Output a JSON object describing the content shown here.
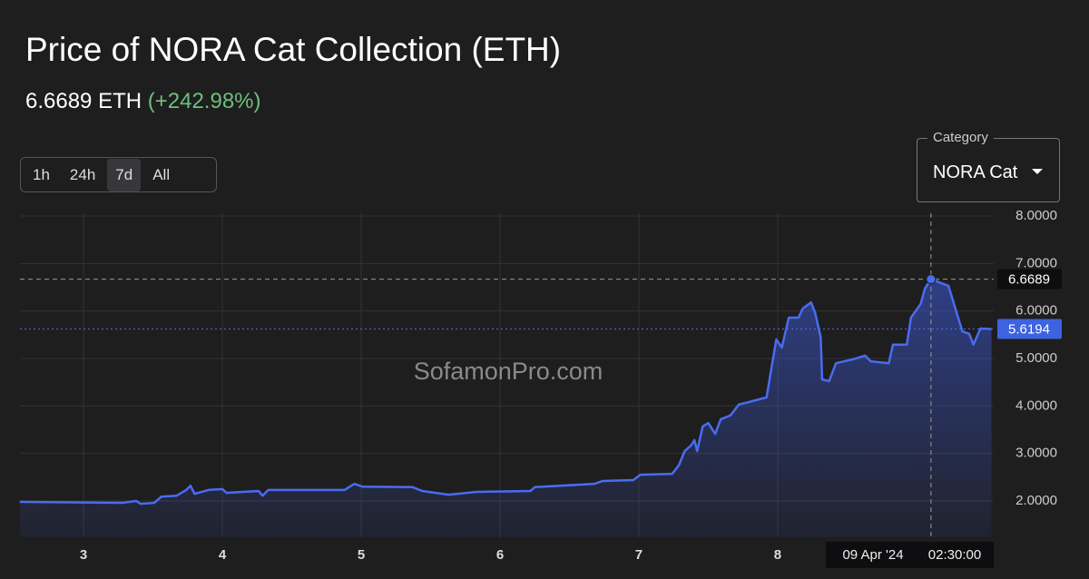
{
  "header": {
    "title": "Price of NORA Cat Collection (ETH)",
    "price": "6.6689 ETH",
    "change": "(+242.98%)"
  },
  "controls": {
    "ranges": [
      "1h",
      "24h",
      "7d",
      "All"
    ],
    "active_range": 2,
    "category_label": "Category",
    "category_value": "NORA Cat"
  },
  "watermark": "SofamonPro.com",
  "chart_data": {
    "type": "area",
    "color": "#4a6cf0",
    "x": [
      2.54,
      3.28,
      3.38,
      3.41,
      3.51,
      3.56,
      3.67,
      3.74,
      3.77,
      3.8,
      3.9,
      4.0,
      4.03,
      4.26,
      4.29,
      4.33,
      4.88,
      4.95,
      5.01,
      5.37,
      5.44,
      5.63,
      5.83,
      6.22,
      6.25,
      6.68,
      6.74,
      6.96,
      7.01,
      7.24,
      7.29,
      7.33,
      7.38,
      7.4,
      7.42,
      7.46,
      7.5,
      7.55,
      7.59,
      7.66,
      7.72,
      7.79,
      7.92,
      7.95,
      7.99,
      8.03,
      8.08,
      8.15,
      8.18,
      8.24,
      8.27,
      8.31,
      8.32,
      8.37,
      8.42,
      8.54,
      8.63,
      8.67,
      8.8,
      8.83,
      8.93,
      8.96,
      9.03,
      9.06,
      9.104,
      9.23,
      9.33,
      9.38,
      9.41,
      9.46,
      9.54
    ],
    "values": [
      1.98,
      1.96,
      2.0,
      1.94,
      1.96,
      2.09,
      2.11,
      2.23,
      2.32,
      2.15,
      2.23,
      2.25,
      2.17,
      2.21,
      2.11,
      2.23,
      2.23,
      2.36,
      2.3,
      2.29,
      2.21,
      2.13,
      2.19,
      2.21,
      2.29,
      2.36,
      2.42,
      2.44,
      2.55,
      2.57,
      2.76,
      3.05,
      3.18,
      3.28,
      3.05,
      3.57,
      3.64,
      3.41,
      3.72,
      3.8,
      4.03,
      4.08,
      4.18,
      4.71,
      5.4,
      5.23,
      5.86,
      5.86,
      6.05,
      6.18,
      5.96,
      5.44,
      4.56,
      4.52,
      4.9,
      4.98,
      5.06,
      4.94,
      4.9,
      5.29,
      5.29,
      5.86,
      6.15,
      6.47,
      6.6689,
      6.53,
      5.57,
      5.52,
      5.29,
      5.63,
      5.6194
    ],
    "xlim": [
      2.542,
      9.556
    ],
    "xticks": [
      3,
      4,
      5,
      6,
      7,
      8
    ],
    "ylim": [
      1.235,
      8.057
    ],
    "yticks": [
      {
        "value": 2,
        "label": "2.0000"
      },
      {
        "value": 3,
        "label": "3.0000"
      },
      {
        "value": 4,
        "label": "4.0000"
      },
      {
        "value": 5,
        "label": "5.0000"
      },
      {
        "value": 6,
        "label": "6.0000"
      },
      {
        "value": 7,
        "label": "7.0000"
      },
      {
        "value": 8,
        "label": "8.0000"
      }
    ],
    "grid": true,
    "current_value": 5.6194,
    "crosshair": {
      "x": 9.104,
      "y": 6.6689,
      "date_label": "09 Apr '24",
      "time_label": "02:30:00"
    }
  }
}
